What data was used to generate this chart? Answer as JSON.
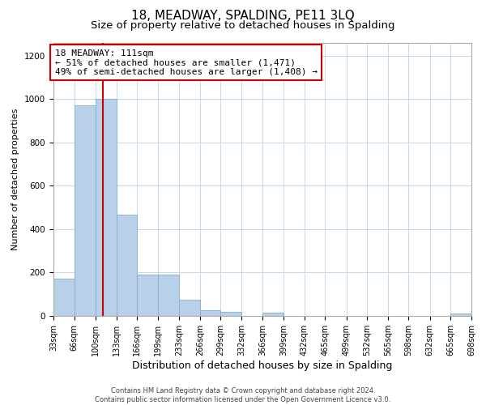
{
  "title": "18, MEADWAY, SPALDING, PE11 3LQ",
  "subtitle": "Size of property relative to detached houses in Spalding",
  "xlabel": "Distribution of detached houses by size in Spalding",
  "ylabel": "Number of detached properties",
  "bar_color": "#b8d0e8",
  "bar_edge_color": "#7aafd4",
  "background_color": "#ffffff",
  "grid_color": "#c8d8ee",
  "vline_x": 111,
  "vline_color": "#cc0000",
  "annotation_text": "18 MEADWAY: 111sqm\n← 51% of detached houses are smaller (1,471)\n49% of semi-detached houses are larger (1,408) →",
  "annotation_box_color": "#ffffff",
  "annotation_box_edge": "#cc0000",
  "bin_edges": [
    33,
    66,
    100,
    133,
    166,
    199,
    233,
    266,
    299,
    332,
    366,
    399,
    432,
    465,
    499,
    532,
    565,
    598,
    632,
    665,
    698
  ],
  "bar_heights": [
    170,
    970,
    1000,
    465,
    190,
    190,
    75,
    25,
    20,
    0,
    15,
    0,
    0,
    0,
    0,
    0,
    0,
    0,
    0,
    10
  ],
  "ylim": [
    0,
    1260
  ],
  "yticks": [
    0,
    200,
    400,
    600,
    800,
    1000,
    1200
  ],
  "footer_text": "Contains HM Land Registry data © Crown copyright and database right 2024.\nContains public sector information licensed under the Open Government Licence v3.0.",
  "title_fontsize": 11,
  "subtitle_fontsize": 9.5,
  "xlabel_fontsize": 9,
  "ylabel_fontsize": 8,
  "tick_fontsize": 7.5
}
